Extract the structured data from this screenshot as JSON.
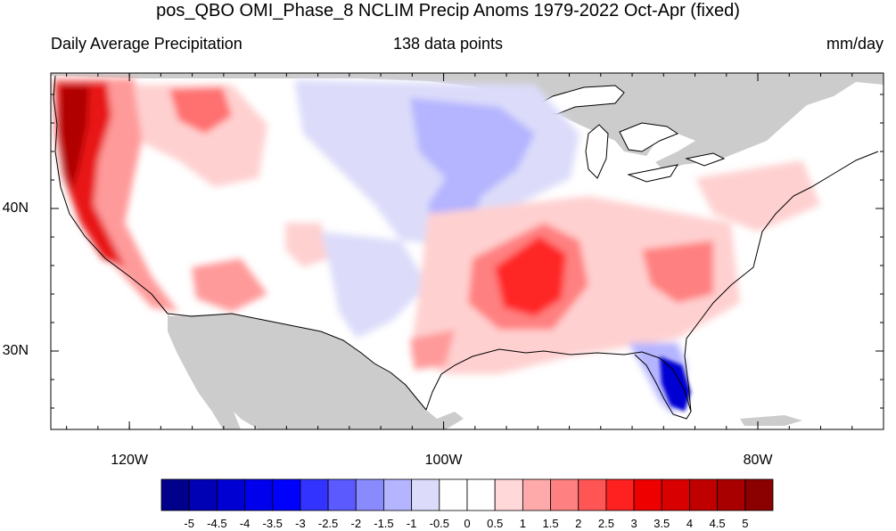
{
  "title": "pos_QBO OMI_Phase_8 NCLIM Precip Anoms 1979-2022 Oct-Apr (fixed)",
  "left_string": "Daily Average Precipitation",
  "center_string": "138 data points",
  "right_string": "mm/day",
  "map": {
    "projection": "cylindrical-equidistant",
    "lon_range": [
      -125,
      -72
    ],
    "lat_range": [
      24.5,
      49.5
    ],
    "land_color": "#cccccc",
    "ocean_color": "#ffffff",
    "lat_labels": [
      {
        "lat": 40,
        "text": "40N"
      },
      {
        "lat": 30,
        "text": "30N"
      }
    ],
    "lon_labels": [
      {
        "lon": -120,
        "text": "120W"
      },
      {
        "lon": -100,
        "text": "100W"
      },
      {
        "lon": -80,
        "text": "80W"
      }
    ]
  },
  "colorbar": {
    "colors": [
      "#00008b",
      "#0000b4",
      "#0000d2",
      "#0000ec",
      "#0000ff",
      "#3333ff",
      "#5a5aff",
      "#8a8aff",
      "#b4b4ff",
      "#dcdcfa",
      "#ffffff",
      "#ffffff",
      "#ffd9d9",
      "#ffaaaa",
      "#ff8080",
      "#ff5555",
      "#ff2020",
      "#ee0000",
      "#d80000",
      "#c00000",
      "#a80000",
      "#8b0000"
    ],
    "labels": [
      "-5",
      "-4.5",
      "-4",
      "-3.5",
      "-3",
      "-2.5",
      "-2",
      "-1.5",
      "-1",
      "-0.5",
      "0",
      "0.5",
      "1",
      "1.5",
      "2",
      "2.5",
      "3",
      "3.5",
      "4",
      "4.5",
      "5"
    ]
  }
}
